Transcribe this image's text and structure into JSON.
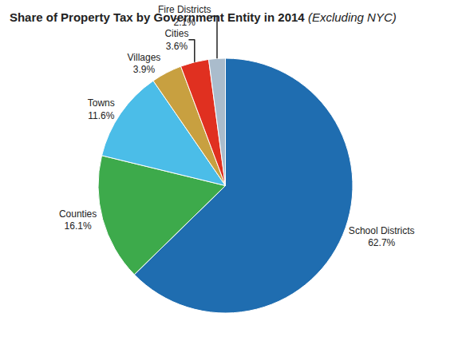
{
  "chart_data": {
    "type": "pie",
    "title": "Share of Property Tax by Government Entity in 2014",
    "subtitle": "(Excluding NYC)",
    "categories": [
      "School Districts",
      "Counties",
      "Towns",
      "Villages",
      "Cities",
      "Fire Districts"
    ],
    "values": [
      62.7,
      16.1,
      11.6,
      3.9,
      3.6,
      2.1
    ],
    "value_labels": [
      "62.7%",
      "16.1%",
      "11.6%",
      "3.9%",
      "3.6%",
      "2.1%"
    ],
    "colors": [
      "#1F6DB0",
      "#3DAA4B",
      "#4BBDE8",
      "#C8A040",
      "#E03020",
      "#AABCCC"
    ],
    "data_labels": true
  }
}
